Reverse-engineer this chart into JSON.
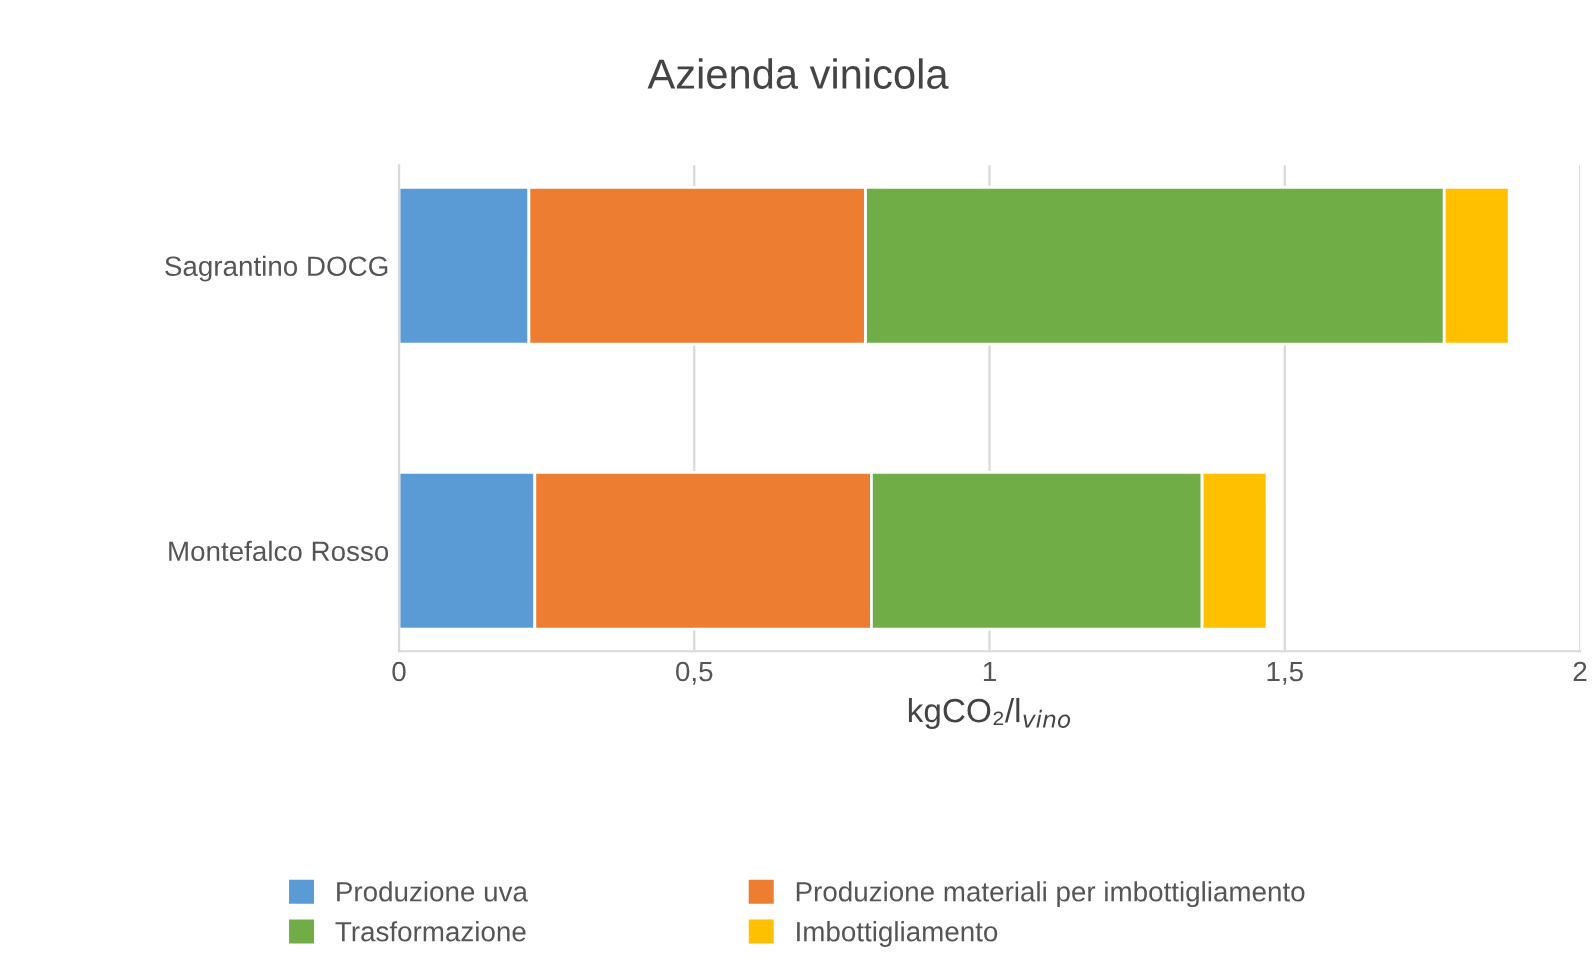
{
  "chart_data": {
    "type": "bar",
    "orientation": "horizontal",
    "stacked": true,
    "title": "Azienda vinicola",
    "xlabel": "kgCO₂/l$_{vino}$",
    "categories": [
      "Sagrantino DOCG",
      "Montefalco Rosso"
    ],
    "series": [
      {
        "name": "Produzione uva",
        "color": "#5b9bd5",
        "values": [
          0.22,
          0.23
        ]
      },
      {
        "name": "Produzione materiali per imbottigliamento",
        "color": "#ed7d31",
        "values": [
          0.57,
          0.57
        ]
      },
      {
        "name": "Trasformazione",
        "color": "#70ad47",
        "values": [
          0.98,
          0.56
        ]
      },
      {
        "name": "Imbottigliamento",
        "color": "#ffc000",
        "values": [
          0.11,
          0.11
        ]
      }
    ],
    "xlim": [
      0,
      2
    ],
    "xticks": [
      0,
      {
        "value": 0.5,
        "label": "0,5"
      },
      1,
      {
        "value": 1.5,
        "label": "1,5"
      },
      2
    ],
    "grid": "x",
    "legend": "bottom"
  }
}
